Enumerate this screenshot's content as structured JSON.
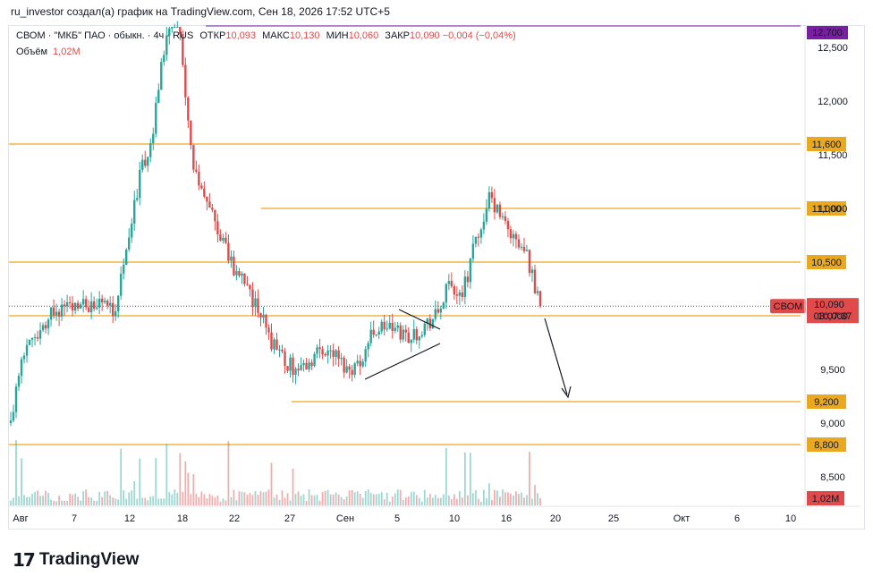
{
  "header": {
    "title": "ru_investor создал(а) график на TradingView.com, Сен 18, 2026 17:52 UTC+5"
  },
  "legend": {
    "symbol": "СВОМ · \"МКБ\" ПАО · обыкн. · 4ч · RUS",
    "open_label": "ОТКР",
    "open": "10,093",
    "high_label": "МАКС",
    "high": "10,130",
    "low_label": "МИН",
    "low": "10,060",
    "close_label": "ЗАКР",
    "close": "10,090",
    "change": "−0,004 (−0,04%)",
    "volume_label": "Объём",
    "volume": "1,02M"
  },
  "footer": {
    "brand": "TradingView",
    "logo_mark": "17"
  },
  "colors": {
    "up": "#26a69a",
    "down": "#e04a4a",
    "level": "#e9a820",
    "top_label": "#7b1fa2"
  },
  "chart_data": {
    "type": "candlestick",
    "title": "",
    "xlabel": "",
    "ylabel": "",
    "ylim": [
      8350,
      12700
    ],
    "y_ticks": [
      8500,
      9000,
      9500,
      10000,
      11000,
      11500,
      12000,
      12500
    ],
    "y_tick_labels": [
      "8,500",
      "9,000",
      "9,500",
      "10,000",
      "11,000",
      "11,500",
      "12,000",
      "12,500"
    ],
    "x_tick_labels": [
      "Авг",
      "7",
      "12",
      "18",
      "22",
      "27",
      "Сен",
      "5",
      "10",
      "16",
      "20",
      "25",
      "Окт",
      "6",
      "10"
    ],
    "levels": [
      {
        "value": 11600,
        "label": "11,600",
        "span": "full"
      },
      {
        "value": 11000,
        "label": "11,000",
        "span": "partial"
      },
      {
        "value": 10500,
        "label": "10,500",
        "span": "full"
      },
      {
        "value": 10000,
        "label": "10,000",
        "span": "full"
      },
      {
        "value": 9200,
        "label": "9,200",
        "span": "partial"
      },
      {
        "value": 8800,
        "label": "8,800",
        "span": "full"
      }
    ],
    "top_price_label": "12,700",
    "last_price": {
      "value": 10090,
      "symbol": "СВОМ",
      "price": "10,090",
      "countdown": "03:07:37"
    },
    "volume_label": "1,02M",
    "path": [
      9000,
      9700,
      9750,
      10000,
      10080,
      10050,
      10100,
      10150,
      10030,
      10700,
      11300,
      11700,
      12600,
      12800,
      11500,
      11100,
      10800,
      10500,
      10300,
      10100,
      9800,
      9600,
      9500,
      9550,
      9700,
      9650,
      9500,
      9550,
      9850,
      9900,
      9850,
      9800,
      9900,
      10000,
      10300,
      10200,
      10700,
      11100,
      10900,
      10700,
      10550,
      10090
    ],
    "overlay": "triangle pattern and projected down arrow"
  }
}
